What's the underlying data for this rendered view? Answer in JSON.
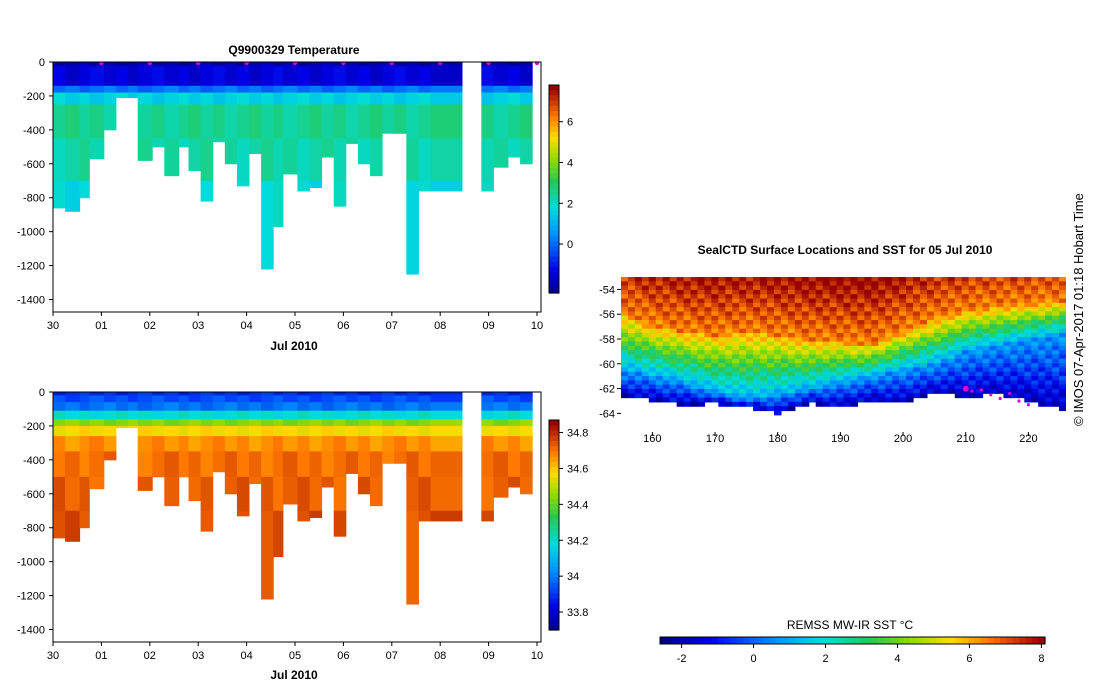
{
  "chart_data": [
    {
      "type": "heatmap",
      "title": "Q9900329  Temperature",
      "xlabel": "Jul 2010",
      "ylabel": "",
      "x_tick_labels": [
        "30",
        "01",
        "02",
        "03",
        "04",
        "05",
        "06",
        "07",
        "08",
        "09",
        "10"
      ],
      "x_range_days": [
        0,
        10.1
      ],
      "y_tick_labels": [
        "0",
        "-200",
        "-400",
        "-600",
        "-800",
        "-1000",
        "-1200",
        "-1400"
      ],
      "ylim": [
        -1450,
        0
      ],
      "colorbar": {
        "ticks": [
          "6",
          "4",
          "2",
          "0"
        ],
        "range": [
          -2.4,
          7.8
        ]
      },
      "profiles": {
        "day": [
          0,
          0.25,
          0.55,
          0.75,
          1.05,
          1.3,
          1.55,
          1.75,
          2.05,
          2.3,
          2.6,
          2.8,
          3.05,
          3.3,
          3.55,
          3.8,
          4.05,
          4.3,
          4.55,
          4.75,
          5.05,
          5.3,
          5.55,
          5.8,
          6.05,
          6.3,
          6.55,
          6.8,
          7.05,
          7.3,
          7.55,
          7.8,
          8.45,
          8.85,
          9.1,
          9.4,
          9.65,
          9.9
        ],
        "max_depth": [
          -860,
          -880,
          -800,
          -570,
          -400,
          -210,
          -210,
          -580,
          -500,
          -670,
          -500,
          -640,
          -820,
          -470,
          -600,
          -730,
          -540,
          -1220,
          -970,
          -660,
          -760,
          -740,
          -560,
          -850,
          -480,
          -600,
          -670,
          -420,
          -420,
          -1250,
          -760,
          -760,
          0,
          -760,
          -620,
          -560,
          -600,
          0
        ]
      },
      "temperature_layers": {
        "depth_breaks": [
          0,
          -25,
          -140,
          -180,
          -250,
          -450,
          -700,
          -1450
        ],
        "mean_temp": [
          -1.8,
          -1.3,
          0.2,
          1.7,
          2.6,
          2.4,
          1.9
        ]
      },
      "surface_markers_day": [
        1,
        2,
        3,
        4,
        5,
        6,
        7,
        8,
        9,
        10
      ]
    },
    {
      "type": "heatmap",
      "title": "",
      "xlabel": "Jul 2010",
      "x_tick_labels": [
        "30",
        "01",
        "02",
        "03",
        "04",
        "05",
        "06",
        "07",
        "08",
        "09",
        "10"
      ],
      "y_tick_labels": [
        "0",
        "-200",
        "-400",
        "-600",
        "-800",
        "-1000",
        "-1200",
        "-1400"
      ],
      "ylim": [
        -1450,
        0
      ],
      "colorbar": {
        "ticks": [
          "34.8",
          "34.6",
          "34.4",
          "34.2",
          "34",
          "33.8"
        ],
        "range": [
          33.7,
          34.87
        ]
      },
      "salinity_layers": {
        "depth_breaks": [
          0,
          -20,
          -60,
          -110,
          -160,
          -200,
          -260,
          -350,
          -500,
          -700,
          -1450
        ],
        "mean_sal": [
          33.9,
          33.95,
          34.0,
          34.2,
          34.45,
          34.58,
          34.68,
          34.72,
          34.74,
          34.76
        ]
      }
    },
    {
      "type": "heatmap",
      "title": "SealCTD Surface Locations and SST for 05 Jul 2010",
      "x_tick_labels": [
        "160",
        "170",
        "180",
        "190",
        "200",
        "210",
        "220"
      ],
      "xlim": [
        155,
        226
      ],
      "y_tick_labels": [
        "-54",
        "-56",
        "-58",
        "-60",
        "-62",
        "-64"
      ],
      "ylim": [
        -65.5,
        -53
      ],
      "colorbar": {
        "label": "REMSS MW-IR SST °C",
        "ticks": [
          "-2",
          "0",
          "2",
          "4",
          "6",
          "8"
        ],
        "range": [
          -2.6,
          8.1
        ]
      },
      "sst_fronts": {
        "lon": [
          155,
          160,
          165,
          170,
          175,
          180,
          185,
          190,
          195,
          200,
          205,
          210,
          215,
          220,
          226
        ],
        "warm_edge_lat": [
          -56,
          -57,
          -57.5,
          -57.8,
          -57.5,
          -57.8,
          -58.2,
          -58.3,
          -58.5,
          -57.5,
          -56.5,
          -55.8,
          -55.5,
          -55.3,
          -55
        ],
        "cold_edge_lat": [
          -60.5,
          -61,
          -61.5,
          -62.3,
          -62.8,
          -62.5,
          -62,
          -61.5,
          -61,
          -60.5,
          -60,
          -59,
          -58.5,
          -58,
          -57.5
        ],
        "ice_edge_lat": [
          -62.5,
          -63,
          -63.3,
          -63.2,
          -63.5,
          -64,
          -63.2,
          -63.5,
          -63,
          -63.2,
          -62.4,
          -62.6,
          -62.5,
          -63,
          -63.8
        ]
      },
      "track_positions": {
        "lon": [
          210,
          211,
          212.5,
          214,
          215.5,
          217,
          218.5,
          220
        ],
        "lat": [
          -62,
          -62.2,
          -62.1,
          -62.5,
          -62.8,
          -62.4,
          -63,
          -63.3
        ]
      }
    }
  ],
  "timestamp": "© IMOS 07-Apr-2017 01:18 Hobart Time",
  "colors": {
    "frame": "#000000",
    "marker": "#dd00dd"
  }
}
